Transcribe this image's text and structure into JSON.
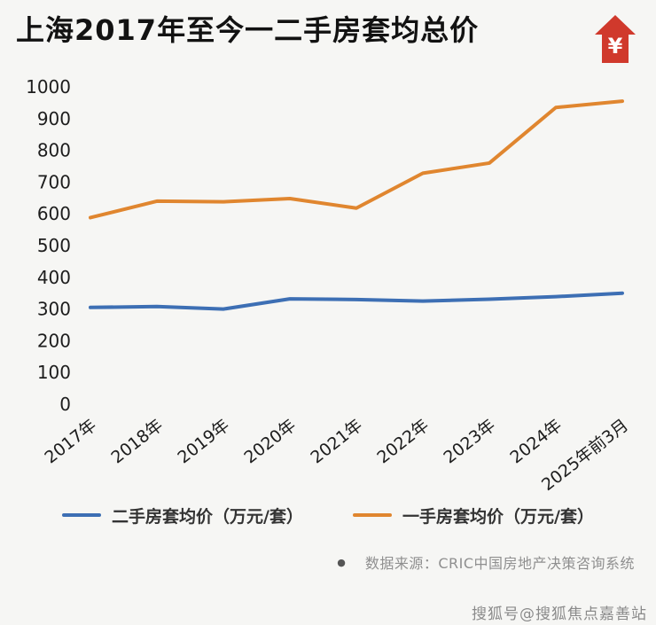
{
  "page": {
    "title": "上海2017年至今一二手房套均总价",
    "house_icon_symbol": "¥"
  },
  "chart_data": {
    "type": "line",
    "title": "上海2017年至今一二手房套均总价",
    "categories": [
      "2017年",
      "2018年",
      "2019年",
      "2020年",
      "2021年",
      "2022年",
      "2023年",
      "2024年",
      "2025年前3月"
    ],
    "series": [
      {
        "name": "二手房套均价（万元/套）",
        "color": "#3d6fb4",
        "values": [
          305,
          308,
          300,
          332,
          330,
          325,
          331,
          339,
          350
        ]
      },
      {
        "name": "一手房套均价（万元/套）",
        "color": "#e0862f",
        "values": [
          588,
          640,
          638,
          648,
          618,
          728,
          760,
          935,
          955
        ]
      }
    ],
    "xlabel": "",
    "ylabel": "",
    "ylim": [
      0,
      1000
    ],
    "ytick_step": 100,
    "grid": false,
    "legend_position": "bottom"
  },
  "source": {
    "bullet": "●",
    "text": "数据来源：CRIC中国房地产决策咨询系统"
  },
  "watermark": {
    "text": "搜狐号@搜狐焦点嘉善站"
  },
  "colors": {
    "accent_red": "#d0392c",
    "title_text": "#121212",
    "axis_text": "#1d1d1d",
    "source_text": "#8f8f8f"
  }
}
